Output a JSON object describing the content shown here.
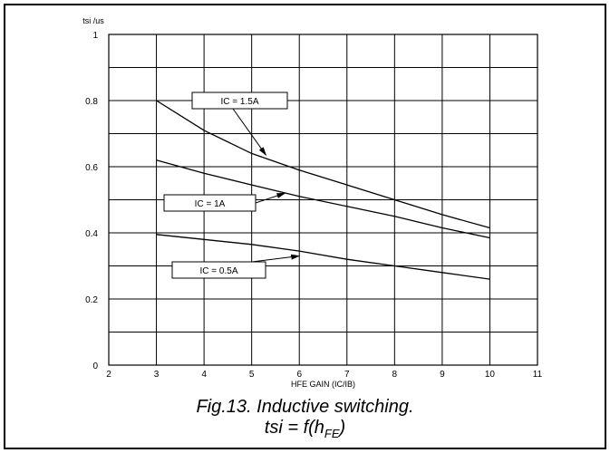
{
  "chart_data": {
    "type": "line",
    "ylabel": "tsi /us",
    "xlabel": "HFE GAIN (IC/IB)",
    "xlim": [
      2,
      11
    ],
    "ylim": [
      0,
      1
    ],
    "x_ticks": [
      "2",
      "3",
      "4",
      "5",
      "6",
      "7",
      "8",
      "9",
      "10",
      "11"
    ],
    "y_ticks": [
      "0",
      "0.2",
      "0.4",
      "0.6",
      "0.8",
      "1"
    ],
    "grid": true,
    "series": [
      {
        "name": "IC = 1.5A",
        "x": [
          3,
          4,
          5,
          6,
          7,
          8,
          9,
          10
        ],
        "y": [
          0.8,
          0.71,
          0.64,
          0.59,
          0.545,
          0.5,
          0.455,
          0.415
        ]
      },
      {
        "name": "IC = 1A",
        "x": [
          3,
          4,
          5,
          6,
          7,
          8,
          9,
          10
        ],
        "y": [
          0.62,
          0.58,
          0.545,
          0.51,
          0.48,
          0.45,
          0.415,
          0.385
        ]
      },
      {
        "name": "IC = 0.5A",
        "x": [
          3,
          4,
          5,
          6,
          7,
          8,
          9,
          10
        ],
        "y": [
          0.395,
          0.38,
          0.365,
          0.345,
          0.32,
          0.3,
          0.28,
          0.26
        ]
      }
    ],
    "annotations": [
      {
        "text": "IC = 1.5A",
        "series": 0,
        "arrow_to": [
          5.3,
          0.635
        ]
      },
      {
        "text": "IC = 1A",
        "series": 1,
        "arrow_to": [
          5.7,
          0.52
        ]
      },
      {
        "text": "IC = 0.5A",
        "series": 2,
        "arrow_to": [
          6.0,
          0.33
        ]
      }
    ]
  },
  "caption": {
    "line1": "Fig.13.  Inductive switching.",
    "line2_prefix": "tsi = f(h",
    "line2_sub": "FE",
    "line2_suffix": ")"
  }
}
